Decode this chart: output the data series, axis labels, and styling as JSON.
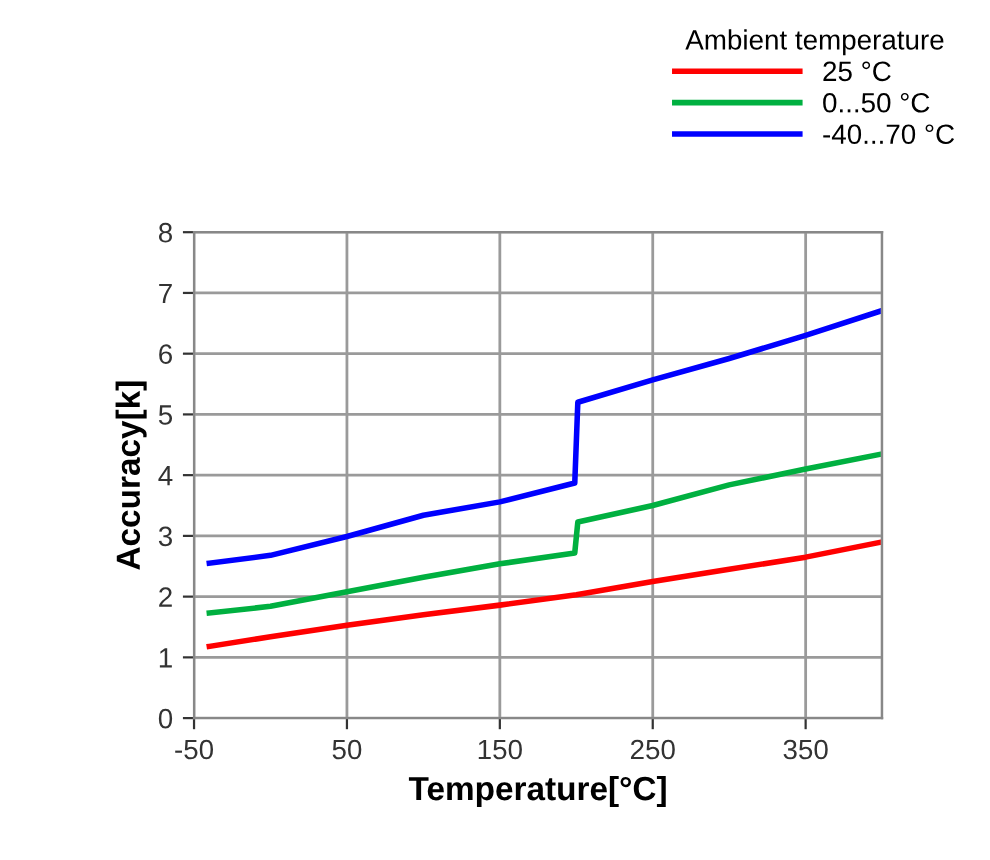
{
  "chart_data": {
    "type": "line",
    "xlabel": "Temperature[°C]",
    "ylabel": "Accuracy[k]",
    "legend_title": "Ambient temperature",
    "series": [
      {
        "name": "25 °C",
        "color": "#ff0000",
        "x": [
          -40,
          0,
          50,
          100,
          150,
          200,
          250,
          300,
          350,
          400
        ],
        "values": [
          1.18,
          1.34,
          1.53,
          1.7,
          1.86,
          2.03,
          2.25,
          2.45,
          2.65,
          2.9
        ]
      },
      {
        "name": "0...50 °C",
        "color": "#00b040",
        "x": [
          -40,
          0,
          50,
          100,
          150,
          199,
          201,
          250,
          300,
          350,
          400
        ],
        "values": [
          1.73,
          1.84,
          2.08,
          2.32,
          2.54,
          2.72,
          3.23,
          3.5,
          3.84,
          4.1,
          4.35
        ]
      },
      {
        "name": "-40...70 °C",
        "color": "#0000ff",
        "x": [
          -40,
          0,
          50,
          100,
          150,
          199,
          201,
          250,
          300,
          350,
          400
        ],
        "values": [
          2.55,
          2.68,
          2.99,
          3.34,
          3.56,
          3.87,
          5.2,
          5.57,
          5.92,
          6.3,
          6.71
        ]
      }
    ],
    "xlim": [
      -50,
      400
    ],
    "xticks": [
      -50,
      50,
      150,
      250,
      350
    ],
    "ylim": [
      0,
      8
    ],
    "yticks": [
      0,
      1,
      2,
      3,
      4,
      5,
      6,
      7,
      8
    ],
    "grid": true,
    "legend": "top right",
    "marker": "none",
    "line_style": "solid"
  }
}
